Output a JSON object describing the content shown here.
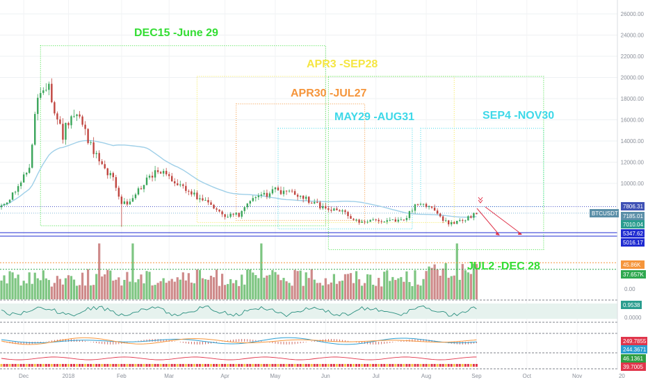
{
  "chart_data": {
    "type": "candlestick",
    "price_axis": {
      "ticks": [
        {
          "label": "26000.00",
          "value": 26000
        },
        {
          "label": "24000.00",
          "value": 24000
        },
        {
          "label": "22000.00",
          "value": 22000
        },
        {
          "label": "20000.00",
          "value": 20000
        },
        {
          "label": "18000.00",
          "value": 18000
        },
        {
          "label": "16000.00",
          "value": 16000
        },
        {
          "label": "14000.00",
          "value": 14000
        },
        {
          "label": "12000.00",
          "value": 12000
        },
        {
          "label": "10000.00",
          "value": 10000
        }
      ]
    },
    "x_axis": {
      "ticks": [
        {
          "label": "Dec",
          "bar": 8
        },
        {
          "label": "2018",
          "bar": 24
        },
        {
          "label": "Feb",
          "bar": 43
        },
        {
          "label": "Mar",
          "bar": 60
        },
        {
          "label": "Apr",
          "bar": 80
        },
        {
          "label": "May",
          "bar": 98
        },
        {
          "label": "Jun",
          "bar": 116
        },
        {
          "label": "Jul",
          "bar": 134
        },
        {
          "label": "Aug",
          "bar": 152
        },
        {
          "label": "Sep",
          "bar": 170
        },
        {
          "label": "Oct",
          "bar": 188
        },
        {
          "label": "Nov",
          "bar": 206
        },
        {
          "label": "20",
          "bar": 222
        }
      ]
    },
    "price_keypoints": [
      [
        0,
        7900
      ],
      [
        5,
        9100
      ],
      [
        10,
        11500
      ],
      [
        13,
        18500
      ],
      [
        17,
        19700
      ],
      [
        19,
        16500
      ],
      [
        22,
        14500
      ],
      [
        25,
        16800
      ],
      [
        29,
        15500
      ],
      [
        33,
        13000
      ],
      [
        37,
        11200
      ],
      [
        40,
        10800
      ],
      [
        43,
        8000
      ],
      [
        47,
        8500
      ],
      [
        52,
        10500
      ],
      [
        58,
        11400
      ],
      [
        63,
        10000
      ],
      [
        68,
        9000
      ],
      [
        73,
        8200
      ],
      [
        77,
        7700
      ],
      [
        80,
        6900
      ],
      [
        85,
        7000
      ],
      [
        89,
        8300
      ],
      [
        94,
        8800
      ],
      [
        98,
        9600
      ],
      [
        100,
        9300
      ],
      [
        104,
        9100
      ],
      [
        108,
        8800
      ],
      [
        112,
        8100
      ],
      [
        116,
        7600
      ],
      [
        120,
        7700
      ],
      [
        124,
        6900
      ],
      [
        128,
        6500
      ],
      [
        131,
        6300
      ],
      [
        135,
        6600
      ],
      [
        139,
        6500
      ],
      [
        143,
        6400
      ],
      [
        147,
        7400
      ],
      [
        149,
        8100
      ],
      [
        152,
        7800
      ],
      [
        155,
        7300
      ],
      [
        158,
        6400
      ],
      [
        162,
        6300
      ],
      [
        166,
        6500
      ],
      [
        169,
        7100
      ],
      [
        170,
        7200
      ]
    ],
    "series": [
      {
        "name": "BTCUSDT"
      }
    ],
    "current_price": 7185.01,
    "price_labels": [
      {
        "text": "7806.31",
        "value": 7806.31,
        "color": "#3f51b5"
      },
      {
        "text": "7185.01",
        "value": 7185.01,
        "color": "#5b8fa8"
      },
      {
        "text": "7010.04",
        "value": 7010.04,
        "color": "#2a9d8f"
      },
      {
        "text": "5347.62",
        "value": 5347.62,
        "color": "#1f2bd1"
      },
      {
        "text": "5016.17",
        "value": 5016.17,
        "color": "#1f2bd1"
      }
    ],
    "price_lines": [
      {
        "value": 7806.31,
        "color": "#4a55c8",
        "style": "dotted"
      },
      {
        "value": 7185.01,
        "color": "#7fb8d6",
        "style": "dotted"
      },
      {
        "value": 5347.62,
        "color": "#1f2bd1",
        "style": "solid"
      },
      {
        "value": 5016.17,
        "color": "#1f2bd1",
        "style": "solid"
      }
    ],
    "annotations": [
      {
        "text": "DEC15 -June 29",
        "color": "#33dd33",
        "start_bar": 14,
        "end_bar": 116,
        "top": 23000,
        "bottom": 6000
      },
      {
        "text": "APR3 -SEP28",
        "color": "#f5e642",
        "start_bar": 70,
        "end_bar": 162,
        "top": 20100,
        "bottom": 6300
      },
      {
        "text": "APR30 -JUL27",
        "color": "#f5953b",
        "start_bar": 84,
        "end_bar": 130,
        "top": 17500,
        "bottom": 6500
      },
      {
        "text": "MAY29 -AUG31",
        "color": "#3ed8e8",
        "start_bar": 99,
        "end_bar": 147,
        "top": 15200,
        "bottom": 5700
      },
      {
        "text": "SEP4 -NOV30",
        "color": "#3ed8e8",
        "start_bar": 150,
        "end_bar": 194,
        "top": 15200,
        "bottom": 7800
      },
      {
        "text": "JUL2 -DEC 28",
        "color": "#33dd33",
        "start_bar": 117,
        "end_bar": 194,
        "top": 20100,
        "bottom": 3750
      }
    ],
    "volume": {
      "labels": [
        {
          "text": "45.86K",
          "value": 45860,
          "color": "#f5953b"
        },
        {
          "text": "37.657K",
          "value": 37657,
          "color": "#2fa84f"
        }
      ],
      "zero_label": "0.00"
    },
    "oscillator": {
      "value_label": "0.9538",
      "label_color": "#2a9d8f",
      "zero_label": "0.0000"
    },
    "macd": {
      "labels": [
        {
          "text": "249.7855",
          "color": "#e0354b"
        },
        {
          "text": "244.3671",
          "color": "#2a9dd0"
        }
      ]
    },
    "momentum": {
      "labels": [
        {
          "text": "46.1361",
          "color": "#2f9e44"
        },
        {
          "text": "39.7005",
          "color": "#e0354b"
        }
      ]
    }
  }
}
